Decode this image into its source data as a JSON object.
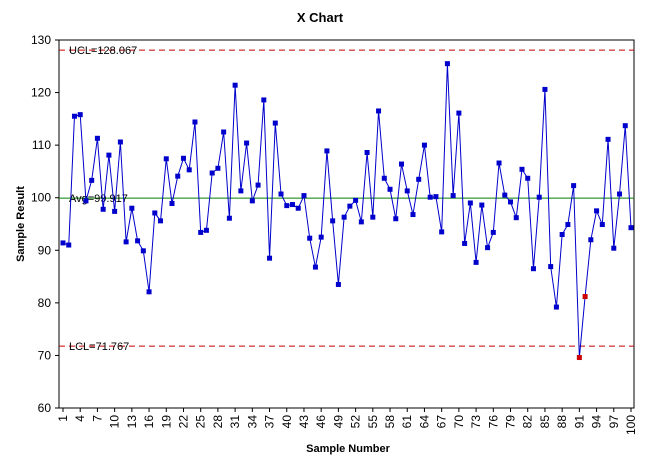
{
  "chart_data": {
    "type": "line",
    "title": "X Chart",
    "xlabel": "Sample Number",
    "ylabel": "Sample Result",
    "ylim": [
      60,
      130
    ],
    "yticks": [
      60,
      70,
      80,
      90,
      100,
      110,
      120,
      130
    ],
    "xlim": [
      1,
      100
    ],
    "xticks": [
      1,
      4,
      7,
      10,
      13,
      16,
      19,
      22,
      25,
      28,
      31,
      34,
      37,
      40,
      43,
      46,
      49,
      52,
      55,
      58,
      61,
      64,
      67,
      70,
      73,
      76,
      79,
      82,
      85,
      88,
      91,
      94,
      97,
      100
    ],
    "grid": false,
    "reference_lines": {
      "ucl": {
        "value": 128.067,
        "label": "UCL=128.067",
        "color": "#c00000",
        "style": "dashed"
      },
      "avg": {
        "value": 99.917,
        "label": "Avg=99.917",
        "color": "#008000",
        "style": "solid"
      },
      "lcl": {
        "value": 71.767,
        "label": "LCL=71.767",
        "color": "#c00000",
        "style": "dashed"
      }
    },
    "series": [
      {
        "color": "#0000cc",
        "marker": "square",
        "x": [
          1,
          2,
          3,
          4,
          5,
          6,
          7,
          8,
          9,
          10,
          11,
          12,
          13,
          14,
          15,
          16,
          17,
          18,
          19,
          20,
          21,
          22,
          23,
          24,
          25,
          26,
          27,
          28,
          29,
          30,
          31,
          32,
          33,
          34,
          35,
          36,
          37,
          38,
          39,
          40,
          41,
          42,
          43,
          44,
          45,
          46,
          47,
          48,
          49,
          50,
          51,
          52,
          53,
          54,
          55,
          56,
          57,
          58,
          59,
          60,
          61,
          62,
          63,
          64,
          65,
          66,
          67,
          68,
          69,
          70,
          71,
          72,
          73,
          74,
          75,
          76,
          77,
          78,
          79,
          80,
          81,
          82,
          83,
          84,
          85,
          86,
          87,
          88,
          89,
          90,
          91,
          92,
          93,
          94,
          95,
          96,
          97,
          98,
          99,
          100
        ],
        "values": [
          91.4,
          91.0,
          115.5,
          115.8,
          99.4,
          103.3,
          111.3,
          97.8,
          108.1,
          97.4,
          110.6,
          91.6,
          98.0,
          91.8,
          89.9,
          82.1,
          97.1,
          95.6,
          107.4,
          98.9,
          104.1,
          107.5,
          105.3,
          114.4,
          93.4,
          93.8,
          104.7,
          105.6,
          112.5,
          96.1,
          121.4,
          101.3,
          110.4,
          99.4,
          102.4,
          118.6,
          88.5,
          114.2,
          100.7,
          98.5,
          98.7,
          98.0,
          100.4,
          92.3,
          86.8,
          92.5,
          108.9,
          95.6,
          83.5,
          96.3,
          98.4,
          99.5,
          95.4,
          108.6,
          96.3,
          116.5,
          103.7,
          101.6,
          96.0,
          106.4,
          101.3,
          96.8,
          103.5,
          110.0,
          100.1,
          100.2,
          93.5,
          125.5,
          100.4,
          116.1,
          91.3,
          99.0,
          87.7,
          98.6,
          90.5,
          93.4,
          106.6,
          100.5,
          99.2,
          96.2,
          105.4,
          103.7,
          86.5,
          100.1,
          120.6,
          86.9,
          79.2,
          93.0,
          94.9,
          102.3,
          69.6,
          81.2,
          92.0,
          97.5,
          94.9,
          111.1,
          90.4,
          100.7,
          113.7,
          94.3
        ]
      }
    ],
    "out_of_control": {
      "indices": [
        91,
        92
      ],
      "color": "#cc0000"
    }
  }
}
